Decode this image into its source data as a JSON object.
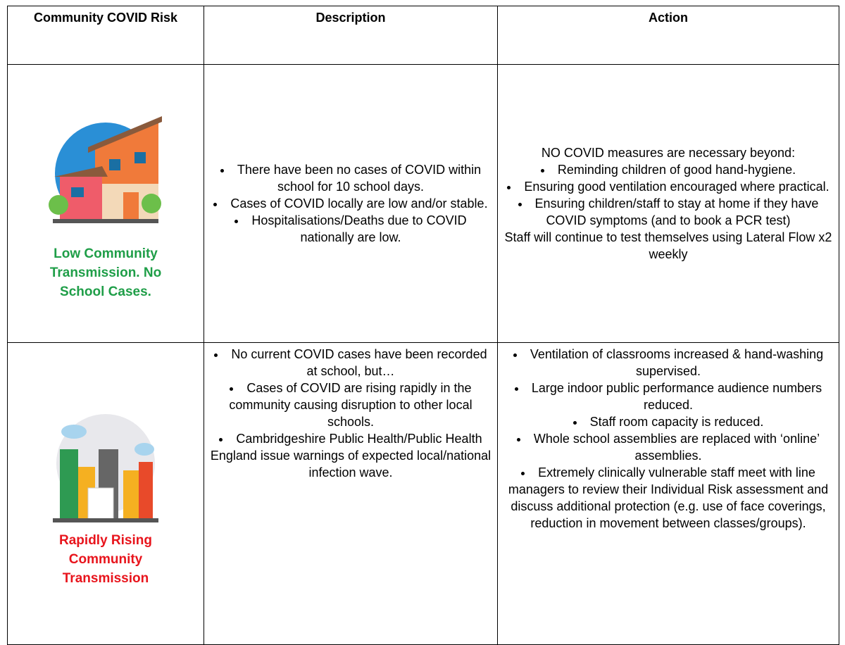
{
  "table": {
    "headers": [
      "Community COVID Risk",
      "Description",
      "Action"
    ],
    "rows": [
      {
        "risk": "Low Community Transmission. No School Cases.",
        "description": [
          "There have been no cases of COVID within school for 10 school days.",
          "Cases of COVID locally are low and/or stable.",
          "Hospitalisations/Deaths due to COVID nationally are low."
        ],
        "action_intro": "NO COVID measures are necessary beyond:",
        "action": [
          "Reminding children of good hand-hygiene.",
          "Ensuring good ventilation encouraged where practical.",
          "Ensuring children/staff to stay at home if they have COVID symptoms (and to book a PCR test)"
        ],
        "action_outro": "Staff will continue to test themselves using Lateral Flow x2 weekly"
      },
      {
        "risk": "Rapidly Rising Community Transmission",
        "description": [
          "No current COVID cases have been recorded at school, but…",
          "Cases of COVID are rising rapidly in the community causing disruption to other local schools.",
          "Cambridgeshire Public Health/Public Health England issue warnings of expected local/national infection wave."
        ],
        "action": [
          "Ventilation of classrooms increased & hand-washing supervised.",
          "Large indoor public performance audience numbers reduced.",
          "Staff room capacity is reduced.",
          "Whole school assemblies are replaced with ‘online’ assemblies.",
          "Extremely clinically vulnerable staff meet with line managers to review their Individual Risk assessment and discuss additional protection (e.g. use of face coverings, reduction in movement between classes/groups)."
        ]
      }
    ]
  }
}
